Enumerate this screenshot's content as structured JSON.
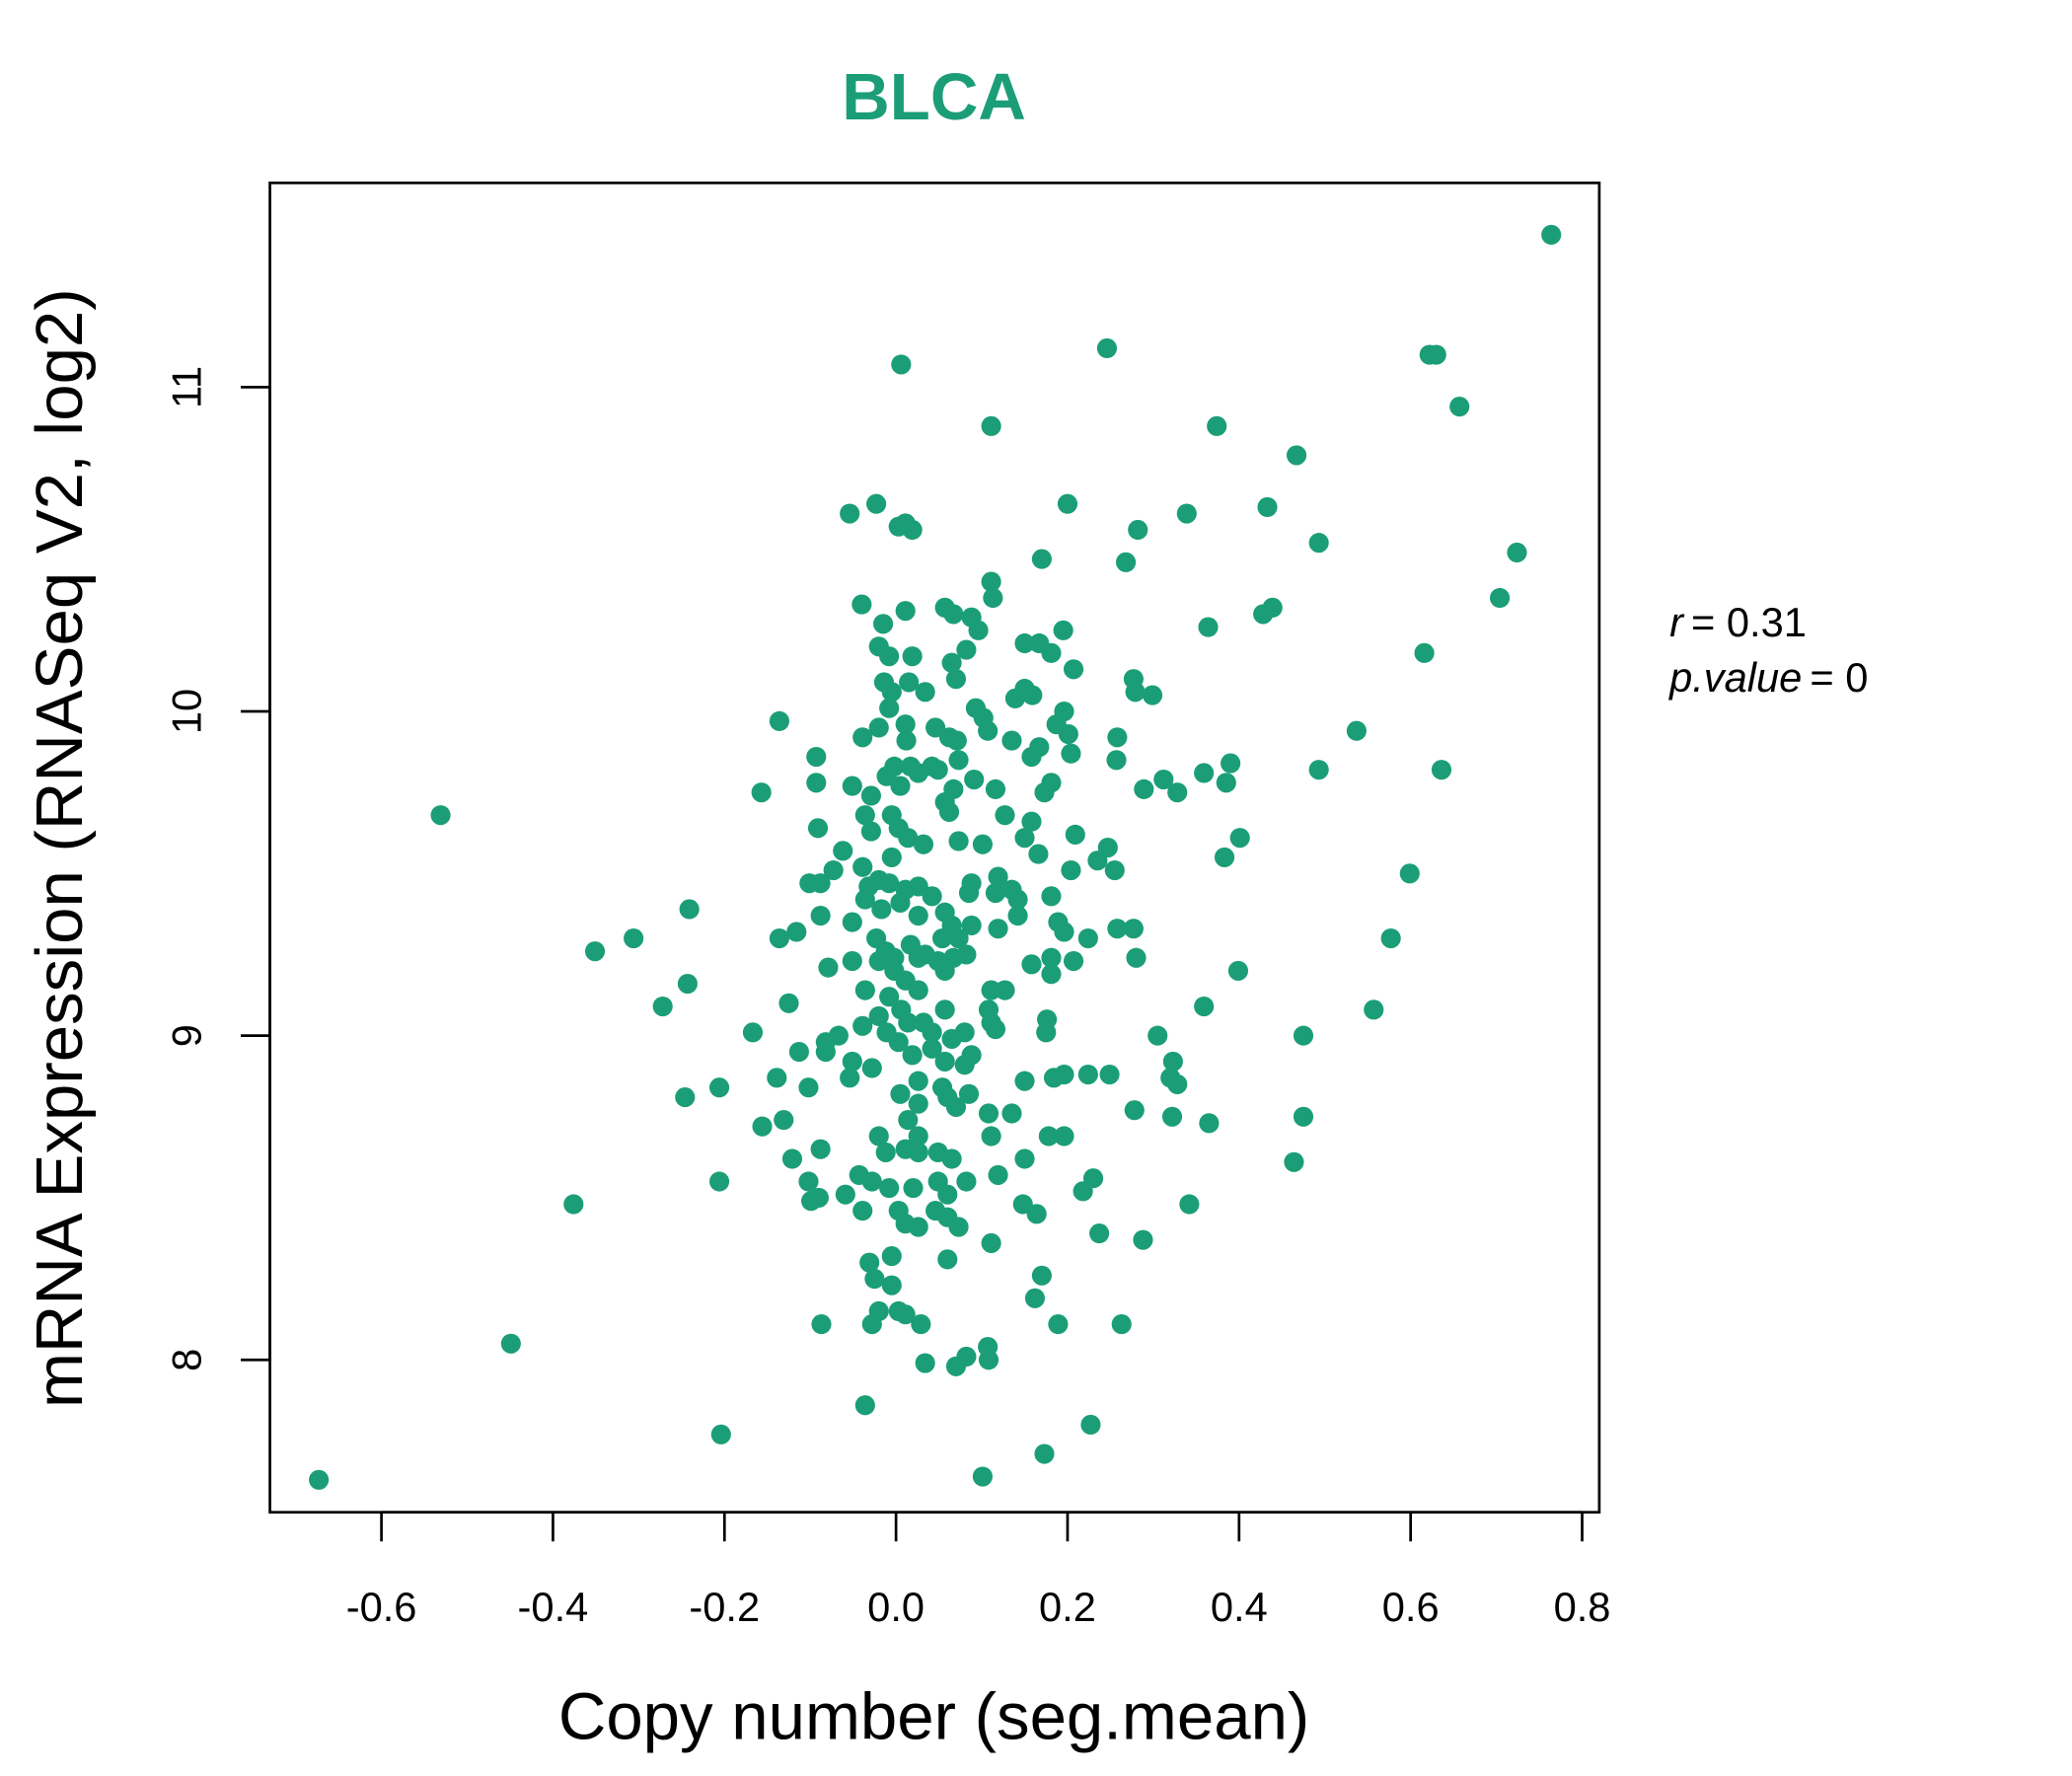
{
  "chart_data": {
    "type": "scatter",
    "title": "BLCA",
    "xlabel": "Copy number (seg.mean)",
    "ylabel": "mRNA Expression (RNASeq V2, log2)",
    "xlim": [
      -0.73,
      0.82
    ],
    "ylim": [
      7.53,
      11.63
    ],
    "xticks": [
      -0.6,
      -0.4,
      -0.2,
      0.0,
      0.2,
      0.4,
      0.6,
      0.8
    ],
    "xtick_labels": [
      "-0.6",
      "-0.4",
      "-0.2",
      "0.0",
      "0.2",
      "0.4",
      "0.6",
      "0.8"
    ],
    "yticks": [
      8,
      9,
      10,
      11
    ],
    "ytick_labels": [
      "8",
      "9",
      "10",
      "11"
    ],
    "grid": false,
    "color": "#1b9e77",
    "annotation": {
      "r_label": "r",
      "r_value": "= 0.31",
      "p_label": "p.value",
      "p_value": "= 0"
    },
    "points": [
      [
        0.764,
        11.47
      ],
      [
        0.006,
        11.07
      ],
      [
        0.246,
        11.12
      ],
      [
        0.111,
        10.88
      ],
      [
        0.622,
        11.1
      ],
      [
        0.63,
        11.1
      ],
      [
        0.657,
        10.94
      ],
      [
        0.374,
        10.88
      ],
      [
        0.467,
        10.79
      ],
      [
        -0.023,
        10.64
      ],
      [
        -0.054,
        10.61
      ],
      [
        0.003,
        10.57
      ],
      [
        0.011,
        10.58
      ],
      [
        0.019,
        10.56
      ],
      [
        0.2,
        10.64
      ],
      [
        0.339,
        10.61
      ],
      [
        0.433,
        10.63
      ],
      [
        0.282,
        10.56
      ],
      [
        0.493,
        10.52
      ],
      [
        0.724,
        10.49
      ],
      [
        0.17,
        10.47
      ],
      [
        0.268,
        10.46
      ],
      [
        0.111,
        10.4
      ],
      [
        0.113,
        10.35
      ],
      [
        0.704,
        10.35
      ],
      [
        0.428,
        10.3
      ],
      [
        0.439,
        10.32
      ],
      [
        0.364,
        10.26
      ],
      [
        0.616,
        10.18
      ],
      [
        -0.04,
        10.33
      ],
      [
        -0.015,
        10.27
      ],
      [
        0.011,
        10.31
      ],
      [
        0.057,
        10.32
      ],
      [
        0.067,
        10.3
      ],
      [
        0.088,
        10.29
      ],
      [
        0.096,
        10.25
      ],
      [
        0.195,
        10.25
      ],
      [
        0.15,
        10.21
      ],
      [
        0.167,
        10.21
      ],
      [
        0.181,
        10.18
      ],
      [
        0.15,
        10.07
      ],
      [
        0.139,
        10.04
      ],
      [
        0.159,
        10.05
      ],
      [
        0.207,
        10.13
      ],
      [
        0.277,
        10.1
      ],
      [
        0.279,
        10.06
      ],
      [
        0.299,
        10.05
      ],
      [
        -0.02,
        10.2
      ],
      [
        -0.008,
        10.17
      ],
      [
        0.019,
        10.17
      ],
      [
        0.015,
        10.09
      ],
      [
        0.065,
        10.15
      ],
      [
        0.07,
        10.1
      ],
      [
        0.082,
        10.19
      ],
      [
        -0.014,
        10.09
      ],
      [
        -0.005,
        10.06
      ],
      [
        -0.008,
        10.01
      ],
      [
        0.034,
        10.06
      ],
      [
        0.093,
        10.01
      ],
      [
        0.102,
        9.98
      ],
      [
        0.107,
        9.94
      ],
      [
        0.196,
        10.0
      ],
      [
        0.187,
        9.96
      ],
      [
        -0.136,
        9.97
      ],
      [
        0.537,
        9.94
      ],
      [
        -0.02,
        9.95
      ],
      [
        -0.039,
        9.92
      ],
      [
        0.011,
        9.96
      ],
      [
        0.012,
        9.91
      ],
      [
        0.046,
        9.95
      ],
      [
        0.062,
        9.92
      ],
      [
        0.071,
        9.91
      ],
      [
        0.135,
        9.91
      ],
      [
        0.167,
        9.89
      ],
      [
        0.158,
        9.86
      ],
      [
        0.201,
        9.93
      ],
      [
        0.204,
        9.87
      ],
      [
        0.258,
        9.92
      ],
      [
        0.257,
        9.85
      ],
      [
        -0.093,
        9.86
      ],
      [
        -0.093,
        9.78
      ],
      [
        -0.157,
        9.75
      ],
      [
        -0.051,
        9.77
      ],
      [
        -0.029,
        9.74
      ],
      [
        -0.036,
        9.68
      ],
      [
        -0.011,
        9.8
      ],
      [
        -0.002,
        9.83
      ],
      [
        0.005,
        9.77
      ],
      [
        0.017,
        9.83
      ],
      [
        0.026,
        9.81
      ],
      [
        0.042,
        9.83
      ],
      [
        0.049,
        9.82
      ],
      [
        0.073,
        9.85
      ],
      [
        0.067,
        9.76
      ],
      [
        0.057,
        9.72
      ],
      [
        0.062,
        9.69
      ],
      [
        0.091,
        9.79
      ],
      [
        0.116,
        9.76
      ],
      [
        0.181,
        9.78
      ],
      [
        0.173,
        9.75
      ],
      [
        0.289,
        9.76
      ],
      [
        0.312,
        9.79
      ],
      [
        0.328,
        9.75
      ],
      [
        0.359,
        9.81
      ],
      [
        0.385,
        9.78
      ],
      [
        0.39,
        9.84
      ],
      [
        0.493,
        9.82
      ],
      [
        0.636,
        9.82
      ],
      [
        -0.531,
        9.68
      ],
      [
        -0.091,
        9.64
      ],
      [
        -0.062,
        9.57
      ],
      [
        -0.029,
        9.63
      ],
      [
        -0.005,
        9.68
      ],
      [
        0.003,
        9.64
      ],
      [
        0.014,
        9.61
      ],
      [
        0.032,
        9.59
      ],
      [
        -0.005,
        9.55
      ],
      [
        0.073,
        9.6
      ],
      [
        0.101,
        9.59
      ],
      [
        0.127,
        9.68
      ],
      [
        0.158,
        9.66
      ],
      [
        0.15,
        9.61
      ],
      [
        0.209,
        9.62
      ],
      [
        0.166,
        9.56
      ],
      [
        0.401,
        9.61
      ],
      [
        0.383,
        9.55
      ],
      [
        0.247,
        9.58
      ],
      [
        0.235,
        9.54
      ],
      [
        0.255,
        9.51
      ],
      [
        0.204,
        9.51
      ],
      [
        0.599,
        9.5
      ],
      [
        -0.101,
        9.47
      ],
      [
        -0.088,
        9.47
      ],
      [
        -0.073,
        9.51
      ],
      [
        -0.039,
        9.52
      ],
      [
        -0.032,
        9.46
      ],
      [
        -0.02,
        9.48
      ],
      [
        -0.008,
        9.47
      ],
      [
        0.011,
        9.45
      ],
      [
        0.026,
        9.46
      ],
      [
        0.042,
        9.43
      ],
      [
        0.005,
        9.41
      ],
      [
        -0.017,
        9.39
      ],
      [
        -0.036,
        9.42
      ],
      [
        0.026,
        9.37
      ],
      [
        0.088,
        9.47
      ],
      [
        0.085,
        9.44
      ],
      [
        0.119,
        9.49
      ],
      [
        0.135,
        9.45
      ],
      [
        0.142,
        9.42
      ],
      [
        0.116,
        9.44
      ],
      [
        0.181,
        9.43
      ],
      [
        -0.241,
        9.39
      ],
      [
        -0.116,
        9.32
      ],
      [
        -0.136,
        9.3
      ],
      [
        -0.088,
        9.37
      ],
      [
        -0.051,
        9.35
      ],
      [
        -0.351,
        9.26
      ],
      [
        -0.306,
        9.3
      ],
      [
        0.057,
        9.38
      ],
      [
        0.065,
        9.34
      ],
      [
        0.054,
        9.3
      ],
      [
        0.073,
        9.3
      ],
      [
        0.088,
        9.34
      ],
      [
        0.142,
        9.37
      ],
      [
        0.119,
        9.33
      ],
      [
        0.189,
        9.35
      ],
      [
        0.196,
        9.32
      ],
      [
        0.224,
        9.3
      ],
      [
        0.258,
        9.33
      ],
      [
        0.277,
        9.33
      ],
      [
        0.28,
        9.24
      ],
      [
        0.577,
        9.3
      ],
      [
        -0.023,
        9.3
      ],
      [
        -0.012,
        9.26
      ],
      [
        -0.002,
        9.24
      ],
      [
        0.017,
        9.28
      ],
      [
        0.026,
        9.24
      ],
      [
        -0.02,
        9.23
      ],
      [
        -0.002,
        9.2
      ],
      [
        0.011,
        9.17
      ],
      [
        0.034,
        9.25
      ],
      [
        0.049,
        9.23
      ],
      [
        0.057,
        9.2
      ],
      [
        0.067,
        9.24
      ],
      [
        0.082,
        9.25
      ],
      [
        -0.079,
        9.21
      ],
      [
        -0.051,
        9.23
      ],
      [
        -0.036,
        9.14
      ],
      [
        -0.008,
        9.12
      ],
      [
        0.026,
        9.14
      ],
      [
        0.111,
        9.14
      ],
      [
        0.127,
        9.14
      ],
      [
        0.158,
        9.22
      ],
      [
        0.181,
        9.24
      ],
      [
        0.181,
        9.19
      ],
      [
        0.207,
        9.23
      ],
      [
        0.399,
        9.2
      ],
      [
        -0.243,
        9.16
      ],
      [
        -0.272,
        9.09
      ],
      [
        -0.125,
        9.1
      ],
      [
        0.359,
        9.09
      ],
      [
        0.557,
        9.08
      ],
      [
        0.006,
        9.08
      ],
      [
        0.057,
        9.08
      ],
      [
        0.108,
        9.08
      ],
      [
        0.111,
        9.04
      ],
      [
        0.176,
        9.05
      ],
      [
        0.175,
        9.01
      ],
      [
        -0.167,
        9.01
      ],
      [
        -0.113,
        8.95
      ],
      [
        -0.082,
        8.98
      ],
      [
        -0.067,
        9.0
      ],
      [
        -0.039,
        9.03
      ],
      [
        -0.02,
        9.06
      ],
      [
        -0.011,
        9.01
      ],
      [
        0.014,
        9.04
      ],
      [
        0.032,
        9.04
      ],
      [
        0.042,
        9.01
      ],
      [
        0.065,
        8.99
      ],
      [
        0.08,
        9.01
      ],
      [
        0.116,
        9.02
      ],
      [
        0.305,
        9.0
      ],
      [
        0.475,
        9.0
      ],
      [
        -0.082,
        8.95
      ],
      [
        -0.051,
        8.92
      ],
      [
        -0.028,
        8.9
      ],
      [
        0.003,
        8.98
      ],
      [
        0.019,
        8.94
      ],
      [
        0.042,
        8.96
      ],
      [
        0.057,
        8.92
      ],
      [
        0.08,
        8.91
      ],
      [
        0.088,
        8.94
      ],
      [
        -0.139,
        8.87
      ],
      [
        -0.102,
        8.84
      ],
      [
        -0.246,
        8.81
      ],
      [
        -0.206,
        8.84
      ],
      [
        -0.054,
        8.87
      ],
      [
        0.15,
        8.86
      ],
      [
        0.184,
        8.87
      ],
      [
        0.196,
        8.88
      ],
      [
        0.224,
        8.88
      ],
      [
        0.249,
        8.88
      ],
      [
        0.323,
        8.92
      ],
      [
        0.328,
        8.85
      ],
      [
        0.32,
        8.87
      ],
      [
        0.026,
        8.86
      ],
      [
        0.054,
        8.84
      ],
      [
        0.005,
        8.82
      ],
      [
        0.026,
        8.79
      ],
      [
        0.06,
        8.81
      ],
      [
        0.085,
        8.82
      ],
      [
        0.014,
        8.74
      ],
      [
        0.07,
        8.78
      ],
      [
        0.108,
        8.76
      ],
      [
        0.135,
        8.76
      ],
      [
        0.278,
        8.77
      ],
      [
        0.322,
        8.75
      ],
      [
        0.365,
        8.73
      ],
      [
        0.475,
        8.75
      ],
      [
        -0.156,
        8.72
      ],
      [
        -0.131,
        8.74
      ],
      [
        -0.02,
        8.69
      ],
      [
        0.026,
        8.69
      ],
      [
        0.111,
        8.69
      ],
      [
        0.178,
        8.69
      ],
      [
        0.196,
        8.69
      ],
      [
        -0.088,
        8.65
      ],
      [
        -0.121,
        8.62
      ],
      [
        -0.012,
        8.64
      ],
      [
        0.011,
        8.65
      ],
      [
        0.026,
        8.64
      ],
      [
        0.049,
        8.64
      ],
      [
        0.065,
        8.62
      ],
      [
        0.15,
        8.62
      ],
      [
        0.464,
        8.61
      ],
      [
        -0.206,
        8.55
      ],
      [
        -0.102,
        8.55
      ],
      [
        -0.09,
        8.5
      ],
      [
        -0.099,
        8.49
      ],
      [
        -0.059,
        8.51
      ],
      [
        -0.043,
        8.57
      ],
      [
        -0.028,
        8.55
      ],
      [
        -0.008,
        8.53
      ],
      [
        0.02,
        8.53
      ],
      [
        0.049,
        8.55
      ],
      [
        0.06,
        8.51
      ],
      [
        0.082,
        8.55
      ],
      [
        0.119,
        8.57
      ],
      [
        -0.376,
        8.48
      ],
      [
        0.23,
        8.56
      ],
      [
        0.218,
        8.52
      ],
      [
        0.148,
        8.48
      ],
      [
        0.164,
        8.45
      ],
      [
        0.342,
        8.48
      ],
      [
        -0.039,
        8.46
      ],
      [
        0.003,
        8.46
      ],
      [
        0.046,
        8.46
      ],
      [
        0.06,
        8.44
      ],
      [
        0.011,
        8.42
      ],
      [
        0.026,
        8.41
      ],
      [
        0.073,
        8.41
      ],
      [
        0.111,
        8.36
      ],
      [
        0.237,
        8.39
      ],
      [
        0.288,
        8.37
      ],
      [
        -0.031,
        8.3
      ],
      [
        -0.005,
        8.32
      ],
      [
        0.06,
        8.31
      ],
      [
        0.17,
        8.26
      ],
      [
        -0.025,
        8.25
      ],
      [
        -0.005,
        8.23
      ],
      [
        -0.02,
        8.15
      ],
      [
        0.003,
        8.15
      ],
      [
        0.011,
        8.14
      ],
      [
        0.029,
        8.11
      ],
      [
        -0.028,
        8.11
      ],
      [
        0.162,
        8.19
      ],
      [
        0.189,
        8.11
      ],
      [
        0.263,
        8.11
      ],
      [
        -0.087,
        8.11
      ],
      [
        -0.449,
        8.05
      ],
      [
        0.034,
        7.99
      ],
      [
        0.07,
        7.98
      ],
      [
        0.082,
        8.01
      ],
      [
        0.107,
        8.04
      ],
      [
        0.108,
        8.0
      ],
      [
        -0.036,
        7.86
      ],
      [
        -0.204,
        7.77
      ],
      [
        0.227,
        7.8
      ],
      [
        0.173,
        7.71
      ],
      [
        0.101,
        7.64
      ],
      [
        -0.673,
        7.63
      ]
    ]
  }
}
